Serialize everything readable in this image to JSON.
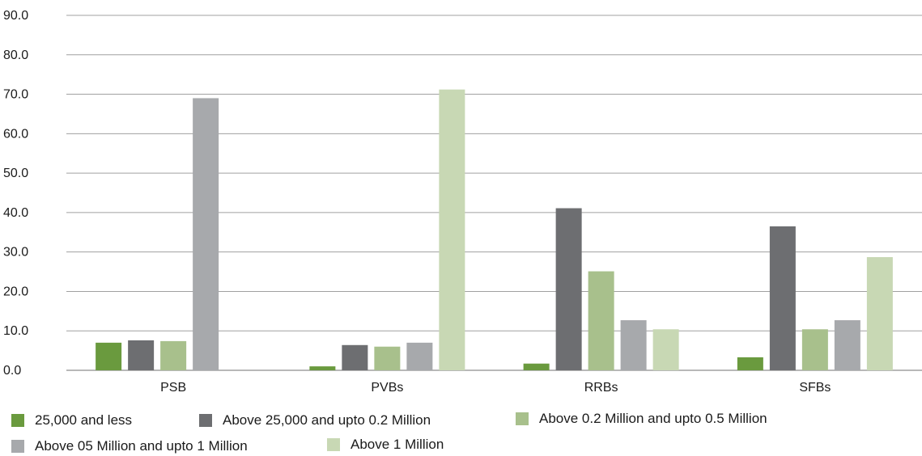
{
  "chart_data": {
    "type": "bar",
    "categories": [
      "PSB",
      "PVBs",
      "RRBs",
      "SFBs"
    ],
    "series": [
      {
        "name": "25,000 and less",
        "color": "#6a9a3e",
        "values": [
          7.0,
          1.0,
          1.7,
          3.3
        ]
      },
      {
        "name": "Above 25,000 and upto 0.2 Million",
        "color": "#6d6e71",
        "values": [
          7.6,
          6.4,
          41.1,
          36.5
        ]
      },
      {
        "name": "Above 0.2 Million and upto 0.5 Million",
        "color": "#a8c08c",
        "values": [
          7.4,
          6.0,
          25.1,
          10.4
        ]
      },
      {
        "name": "Above 05 Million and upto 1 Million",
        "color": "#a7a9ac",
        "values": [
          69.0,
          7.0,
          12.7,
          12.7
        ]
      },
      {
        "name": "Above 1 Million",
        "color": "#c8d8b4",
        "values": [
          null,
          71.2,
          10.4,
          28.7
        ]
      }
    ],
    "yticks": [
      "0.0",
      "10.0",
      "20.0",
      "30.0",
      "40.0",
      "50.0",
      "60.0",
      "70.0",
      "80.0",
      "90.0"
    ],
    "ylim": [
      0,
      90
    ],
    "grid": true,
    "legend_position": "bottom"
  }
}
